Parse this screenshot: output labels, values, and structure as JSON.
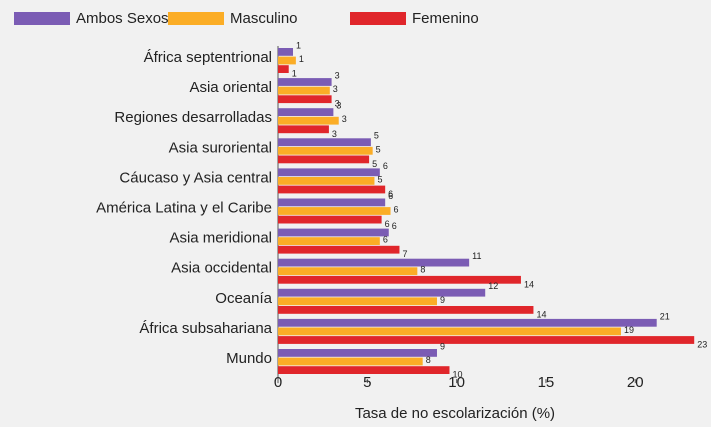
{
  "chart_data": {
    "type": "barh",
    "xlabel": "Tasa de no escolarización (%)",
    "categories": [
      "África septentrional",
      "Asia oriental",
      "Regiones desarrolladas",
      "Asia suroriental",
      "Cáucaso y Asia central",
      "América Latina y el Caribe",
      "Asia meridional",
      "Asia occidental",
      "Oceanía",
      "África subsahariana",
      "Mundo"
    ],
    "series": [
      {
        "name": "Ambos Sexos",
        "color": "#7b5cb4",
        "values": [
          0.84,
          3.0,
          3.1,
          5.2,
          5.7,
          6.0,
          6.2,
          10.7,
          11.6,
          21.2,
          8.9
        ],
        "value_labels": [
          1,
          3,
          3,
          5,
          6,
          6,
          6,
          11,
          12,
          21,
          9
        ]
      },
      {
        "name": "Masculino",
        "color": "#fbad26",
        "values": [
          1.0,
          2.9,
          3.4,
          5.3,
          5.4,
          6.3,
          5.7,
          7.8,
          8.9,
          19.2,
          8.1
        ],
        "value_labels": [
          1,
          3,
          3,
          5,
          5,
          6,
          6,
          8,
          9,
          19,
          8
        ]
      },
      {
        "name": "Femenino",
        "color": "#e0262b",
        "values": [
          0.6,
          3.0,
          2.85,
          5.1,
          6.0,
          5.8,
          6.8,
          13.6,
          14.3,
          23.3,
          9.6
        ],
        "value_labels": [
          1,
          3,
          3,
          5,
          6,
          6,
          7,
          14,
          14,
          23,
          10
        ]
      }
    ],
    "xlim": [
      0,
      23.4
    ],
    "xticks": [
      0,
      5,
      10,
      15,
      20
    ],
    "legend": "top"
  }
}
